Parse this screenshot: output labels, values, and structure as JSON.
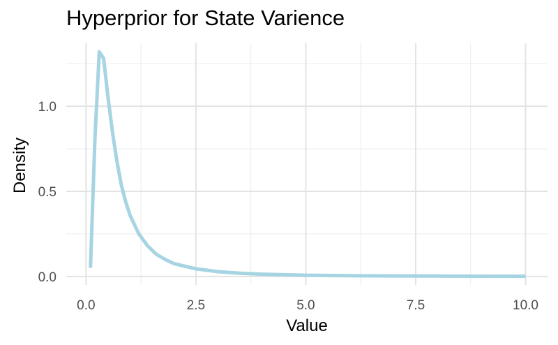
{
  "chart_data": {
    "type": "line",
    "title": "Hyperprior for State Varience",
    "xlabel": "Value",
    "ylabel": "Density",
    "xlim": [
      -0.45,
      10.5
    ],
    "ylim": [
      -0.05,
      1.37
    ],
    "xticks": [
      0,
      2.5,
      5,
      7.5,
      10
    ],
    "xtick_labels": [
      "0.0",
      "2.5",
      "5.0",
      "7.5",
      "10.0"
    ],
    "yticks": [
      0,
      0.5,
      1
    ],
    "ytick_labels": [
      "0.0",
      "0.5",
      "1.0"
    ],
    "grid": true,
    "line_color": "#a6d4e2",
    "series": [
      {
        "x": [
          0.1,
          0.2,
          0.3,
          0.4,
          0.5,
          0.6,
          0.7,
          0.8,
          0.9,
          1.0,
          1.2,
          1.4,
          1.6,
          1.8,
          2.0,
          2.5,
          3.0,
          3.5,
          4.0,
          5.0,
          6.0,
          7.0,
          8.0,
          9.0,
          10.0
        ],
        "values": [
          0.05,
          0.8,
          1.32,
          1.28,
          1.05,
          0.85,
          0.68,
          0.54,
          0.44,
          0.36,
          0.25,
          0.18,
          0.13,
          0.1,
          0.075,
          0.045,
          0.028,
          0.019,
          0.013,
          0.007,
          0.004,
          0.003,
          0.002,
          0.0015,
          0.001
        ]
      }
    ]
  }
}
